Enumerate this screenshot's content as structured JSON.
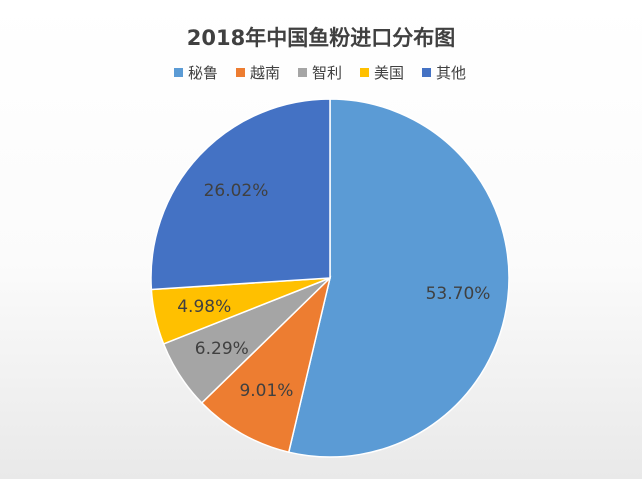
{
  "chart_data": {
    "type": "pie",
    "title": "2018年中国鱼粉进口分布图",
    "legend_position": "top",
    "slices": [
      {
        "name": "秘鲁",
        "value": 53.7,
        "label": "53.70%",
        "color": "#5B9BD5"
      },
      {
        "name": "越南",
        "value": 9.01,
        "label": "9.01%",
        "color": "#ED7D31"
      },
      {
        "name": "智利",
        "value": 6.29,
        "label": "6.29%",
        "color": "#A5A5A5"
      },
      {
        "name": "美国",
        "value": 4.98,
        "label": "4.98%",
        "color": "#FFC000"
      },
      {
        "name": "其他",
        "value": 26.02,
        "label": "26.02%",
        "color": "#4472C4"
      }
    ]
  }
}
